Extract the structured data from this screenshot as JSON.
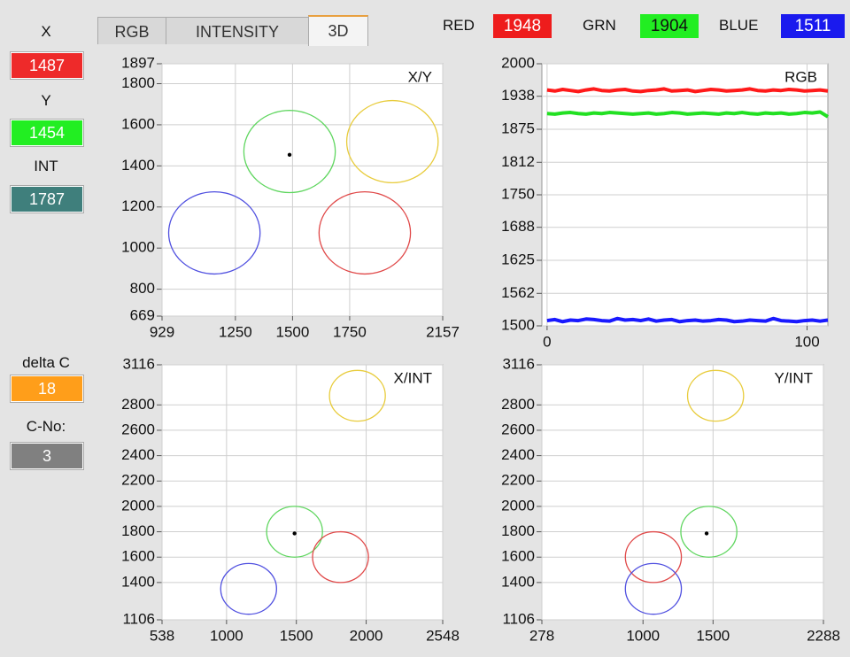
{
  "sidebar": {
    "x_label": "X",
    "x_value": "1487",
    "y_label": "Y",
    "y_value": "1454",
    "int_label": "INT",
    "int_value": "1787",
    "delta_label": "delta C",
    "delta_value": "18",
    "cno_label": "C-No:",
    "cno_value": "3"
  },
  "tabs": [
    "RGB",
    "INTENSITY",
    "3D"
  ],
  "selected_tab": 2,
  "readouts": [
    {
      "label": "RED",
      "value": "1948"
    },
    {
      "label": "GRN",
      "value": "1904"
    },
    {
      "label": "BLUE",
      "value": "1511"
    }
  ],
  "chart_data": [
    {
      "type": "scatter",
      "title": "X/Y",
      "xlim": [
        929,
        2157
      ],
      "xticks": [
        929,
        1250,
        1500,
        1750,
        2157
      ],
      "ylim": [
        669,
        1897
      ],
      "yticks": [
        669,
        800,
        1000,
        1200,
        1400,
        1600,
        1800,
        1897
      ],
      "grid": true,
      "series": [
        {
          "color": "#e8cc3c",
          "x": [
            1937
          ],
          "values": [
            1518
          ],
          "r": [
            200
          ]
        },
        {
          "color": "#5fd65f",
          "x": [
            1487
          ],
          "values": [
            1470
          ],
          "r": [
            200
          ]
        },
        {
          "color": "#e04848",
          "x": [
            1816
          ],
          "values": [
            1074
          ],
          "r": [
            200
          ]
        },
        {
          "color": "#5050e0",
          "x": [
            1158
          ],
          "values": [
            1074
          ],
          "r": [
            200
          ]
        }
      ],
      "cursor": {
        "x": 1487,
        "y": 1454
      }
    },
    {
      "type": "line",
      "title": "RGB",
      "xlim": [
        -2,
        108
      ],
      "xticks": [
        0,
        100
      ],
      "ylim": [
        1500,
        2000
      ],
      "yticks": [
        1500,
        1562,
        1625,
        1688,
        1750,
        1812,
        1875,
        1938,
        2000
      ],
      "grid": true,
      "x": [
        0,
        3,
        6,
        9,
        12,
        15,
        18,
        21,
        24,
        27,
        30,
        33,
        36,
        39,
        42,
        45,
        48,
        51,
        54,
        57,
        60,
        63,
        66,
        69,
        72,
        75,
        78,
        81,
        84,
        87,
        90,
        93,
        96,
        99,
        102,
        105,
        108
      ],
      "series": [
        {
          "color": "#ff1a1a",
          "values": [
            1950,
            1948,
            1951,
            1949,
            1947,
            1950,
            1952,
            1949,
            1948,
            1950,
            1951,
            1948,
            1947,
            1949,
            1950,
            1952,
            1948,
            1949,
            1950,
            1947,
            1949,
            1951,
            1950,
            1948,
            1949,
            1950,
            1952,
            1949,
            1948,
            1950,
            1949,
            1951,
            1950,
            1948,
            1949,
            1950,
            1948
          ]
        },
        {
          "color": "#22e022",
          "values": [
            1905,
            1904,
            1906,
            1907,
            1905,
            1904,
            1906,
            1905,
            1907,
            1906,
            1905,
            1904,
            1905,
            1906,
            1904,
            1905,
            1907,
            1906,
            1904,
            1905,
            1906,
            1905,
            1904,
            1906,
            1905,
            1907,
            1905,
            1904,
            1906,
            1905,
            1906,
            1904,
            1905,
            1907,
            1906,
            1908,
            1899
          ]
        },
        {
          "color": "#1a1aff",
          "values": [
            1510,
            1512,
            1508,
            1511,
            1510,
            1513,
            1512,
            1510,
            1509,
            1514,
            1511,
            1512,
            1510,
            1513,
            1509,
            1511,
            1512,
            1508,
            1510,
            1511,
            1509,
            1510,
            1512,
            1511,
            1508,
            1509,
            1511,
            1510,
            1509,
            1514,
            1510,
            1509,
            1508,
            1510,
            1511,
            1509,
            1511
          ]
        }
      ]
    },
    {
      "type": "scatter",
      "title": "X/INT",
      "xlim": [
        538,
        2548
      ],
      "xticks": [
        538,
        1000,
        1500,
        2000,
        2548
      ],
      "ylim": [
        1106,
        3116
      ],
      "yticks": [
        1106,
        1400,
        1600,
        1800,
        2000,
        2200,
        2400,
        2600,
        2800,
        3116
      ],
      "grid": true,
      "series": [
        {
          "color": "#e8cc3c",
          "x": [
            1937
          ],
          "values": [
            2872
          ],
          "r": [
            200
          ]
        },
        {
          "color": "#5fd65f",
          "x": [
            1487
          ],
          "values": [
            1800
          ],
          "r": [
            200
          ]
        },
        {
          "color": "#e04848",
          "x": [
            1816
          ],
          "values": [
            1600
          ],
          "r": [
            200
          ]
        },
        {
          "color": "#5050e0",
          "x": [
            1158
          ],
          "values": [
            1350
          ],
          "r": [
            200
          ]
        }
      ],
      "cursor": {
        "x": 1487,
        "y": 1787
      }
    },
    {
      "type": "scatter",
      "title": "Y/INT",
      "xlim": [
        278,
        2288
      ],
      "xticks": [
        278,
        1000,
        1500,
        2288
      ],
      "ylim": [
        1106,
        3116
      ],
      "yticks": [
        1106,
        1400,
        1600,
        1800,
        2000,
        2200,
        2400,
        2600,
        2800,
        3116
      ],
      "grid": true,
      "series": [
        {
          "color": "#e8cc3c",
          "x": [
            1518
          ],
          "values": [
            2872
          ],
          "r": [
            200
          ]
        },
        {
          "color": "#5fd65f",
          "x": [
            1470
          ],
          "values": [
            1800
          ],
          "r": [
            200
          ]
        },
        {
          "color": "#e04848",
          "x": [
            1074
          ],
          "values": [
            1600
          ],
          "r": [
            200
          ]
        },
        {
          "color": "#5050e0",
          "x": [
            1074
          ],
          "values": [
            1350
          ],
          "r": [
            200
          ]
        }
      ],
      "cursor": {
        "x": 1454,
        "y": 1787
      }
    }
  ]
}
